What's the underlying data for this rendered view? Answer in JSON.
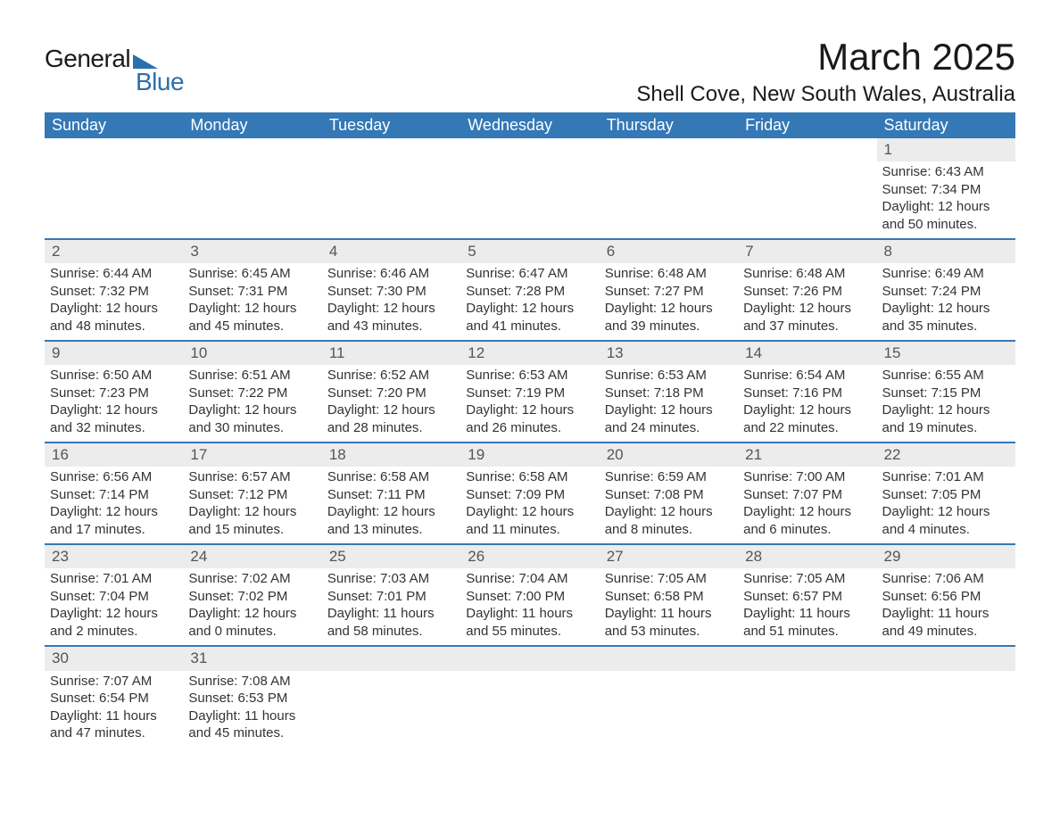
{
  "logo": {
    "text_a": "General",
    "text_b": "Blue"
  },
  "title": "March 2025",
  "location": "Shell Cove, New South Wales, Australia",
  "colors": {
    "header_bg": "#3478b6",
    "header_fg": "#ffffff",
    "daynum_bg": "#ececec",
    "row_divider": "#3478b6",
    "text": "#333333",
    "logo_accent": "#2b6fad"
  },
  "weekdays": [
    "Sunday",
    "Monday",
    "Tuesday",
    "Wednesday",
    "Thursday",
    "Friday",
    "Saturday"
  ],
  "weeks": [
    [
      null,
      null,
      null,
      null,
      null,
      null,
      {
        "n": "1",
        "sr": "Sunrise: 6:43 AM",
        "ss": "Sunset: 7:34 PM",
        "dl": "Daylight: 12 hours and 50 minutes."
      }
    ],
    [
      {
        "n": "2",
        "sr": "Sunrise: 6:44 AM",
        "ss": "Sunset: 7:32 PM",
        "dl": "Daylight: 12 hours and 48 minutes."
      },
      {
        "n": "3",
        "sr": "Sunrise: 6:45 AM",
        "ss": "Sunset: 7:31 PM",
        "dl": "Daylight: 12 hours and 45 minutes."
      },
      {
        "n": "4",
        "sr": "Sunrise: 6:46 AM",
        "ss": "Sunset: 7:30 PM",
        "dl": "Daylight: 12 hours and 43 minutes."
      },
      {
        "n": "5",
        "sr": "Sunrise: 6:47 AM",
        "ss": "Sunset: 7:28 PM",
        "dl": "Daylight: 12 hours and 41 minutes."
      },
      {
        "n": "6",
        "sr": "Sunrise: 6:48 AM",
        "ss": "Sunset: 7:27 PM",
        "dl": "Daylight: 12 hours and 39 minutes."
      },
      {
        "n": "7",
        "sr": "Sunrise: 6:48 AM",
        "ss": "Sunset: 7:26 PM",
        "dl": "Daylight: 12 hours and 37 minutes."
      },
      {
        "n": "8",
        "sr": "Sunrise: 6:49 AM",
        "ss": "Sunset: 7:24 PM",
        "dl": "Daylight: 12 hours and 35 minutes."
      }
    ],
    [
      {
        "n": "9",
        "sr": "Sunrise: 6:50 AM",
        "ss": "Sunset: 7:23 PM",
        "dl": "Daylight: 12 hours and 32 minutes."
      },
      {
        "n": "10",
        "sr": "Sunrise: 6:51 AM",
        "ss": "Sunset: 7:22 PM",
        "dl": "Daylight: 12 hours and 30 minutes."
      },
      {
        "n": "11",
        "sr": "Sunrise: 6:52 AM",
        "ss": "Sunset: 7:20 PM",
        "dl": "Daylight: 12 hours and 28 minutes."
      },
      {
        "n": "12",
        "sr": "Sunrise: 6:53 AM",
        "ss": "Sunset: 7:19 PM",
        "dl": "Daylight: 12 hours and 26 minutes."
      },
      {
        "n": "13",
        "sr": "Sunrise: 6:53 AM",
        "ss": "Sunset: 7:18 PM",
        "dl": "Daylight: 12 hours and 24 minutes."
      },
      {
        "n": "14",
        "sr": "Sunrise: 6:54 AM",
        "ss": "Sunset: 7:16 PM",
        "dl": "Daylight: 12 hours and 22 minutes."
      },
      {
        "n": "15",
        "sr": "Sunrise: 6:55 AM",
        "ss": "Sunset: 7:15 PM",
        "dl": "Daylight: 12 hours and 19 minutes."
      }
    ],
    [
      {
        "n": "16",
        "sr": "Sunrise: 6:56 AM",
        "ss": "Sunset: 7:14 PM",
        "dl": "Daylight: 12 hours and 17 minutes."
      },
      {
        "n": "17",
        "sr": "Sunrise: 6:57 AM",
        "ss": "Sunset: 7:12 PM",
        "dl": "Daylight: 12 hours and 15 minutes."
      },
      {
        "n": "18",
        "sr": "Sunrise: 6:58 AM",
        "ss": "Sunset: 7:11 PM",
        "dl": "Daylight: 12 hours and 13 minutes."
      },
      {
        "n": "19",
        "sr": "Sunrise: 6:58 AM",
        "ss": "Sunset: 7:09 PM",
        "dl": "Daylight: 12 hours and 11 minutes."
      },
      {
        "n": "20",
        "sr": "Sunrise: 6:59 AM",
        "ss": "Sunset: 7:08 PM",
        "dl": "Daylight: 12 hours and 8 minutes."
      },
      {
        "n": "21",
        "sr": "Sunrise: 7:00 AM",
        "ss": "Sunset: 7:07 PM",
        "dl": "Daylight: 12 hours and 6 minutes."
      },
      {
        "n": "22",
        "sr": "Sunrise: 7:01 AM",
        "ss": "Sunset: 7:05 PM",
        "dl": "Daylight: 12 hours and 4 minutes."
      }
    ],
    [
      {
        "n": "23",
        "sr": "Sunrise: 7:01 AM",
        "ss": "Sunset: 7:04 PM",
        "dl": "Daylight: 12 hours and 2 minutes."
      },
      {
        "n": "24",
        "sr": "Sunrise: 7:02 AM",
        "ss": "Sunset: 7:02 PM",
        "dl": "Daylight: 12 hours and 0 minutes."
      },
      {
        "n": "25",
        "sr": "Sunrise: 7:03 AM",
        "ss": "Sunset: 7:01 PM",
        "dl": "Daylight: 11 hours and 58 minutes."
      },
      {
        "n": "26",
        "sr": "Sunrise: 7:04 AM",
        "ss": "Sunset: 7:00 PM",
        "dl": "Daylight: 11 hours and 55 minutes."
      },
      {
        "n": "27",
        "sr": "Sunrise: 7:05 AM",
        "ss": "Sunset: 6:58 PM",
        "dl": "Daylight: 11 hours and 53 minutes."
      },
      {
        "n": "28",
        "sr": "Sunrise: 7:05 AM",
        "ss": "Sunset: 6:57 PM",
        "dl": "Daylight: 11 hours and 51 minutes."
      },
      {
        "n": "29",
        "sr": "Sunrise: 7:06 AM",
        "ss": "Sunset: 6:56 PM",
        "dl": "Daylight: 11 hours and 49 minutes."
      }
    ],
    [
      {
        "n": "30",
        "sr": "Sunrise: 7:07 AM",
        "ss": "Sunset: 6:54 PM",
        "dl": "Daylight: 11 hours and 47 minutes."
      },
      {
        "n": "31",
        "sr": "Sunrise: 7:08 AM",
        "ss": "Sunset: 6:53 PM",
        "dl": "Daylight: 11 hours and 45 minutes."
      },
      null,
      null,
      null,
      null,
      null
    ]
  ]
}
